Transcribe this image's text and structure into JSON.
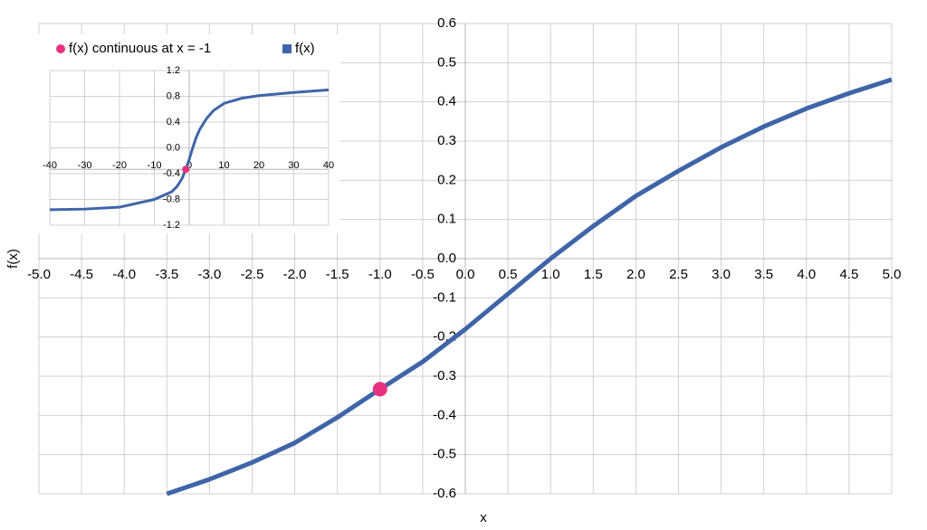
{
  "chart_data": [
    {
      "type": "line",
      "x_label": "x",
      "y_label": "f(x)",
      "legend": "top-left",
      "grid": true,
      "xlim": [
        -5,
        5
      ],
      "ylim": [
        -0.6,
        0.6
      ],
      "xticks": [
        {
          "value": -5,
          "label": "-5.0"
        },
        -4.5,
        {
          "value": -4,
          "label": "-4.0"
        },
        -3.5,
        {
          "value": -3,
          "label": "-3.0"
        },
        -2.5,
        {
          "value": -2,
          "label": "-2.0"
        },
        -1.5,
        {
          "value": -1,
          "label": "-1.0"
        },
        -0.5,
        {
          "value": 0,
          "label": "0.0"
        },
        0.5,
        {
          "value": 1,
          "label": "1.0"
        },
        1.5,
        {
          "value": 2,
          "label": "2.0"
        },
        2.5,
        {
          "value": 3,
          "label": "3.0"
        },
        3.5,
        {
          "value": 4,
          "label": "4.0"
        },
        4.5,
        {
          "value": 5,
          "label": "5.0"
        }
      ],
      "yticks": [
        0.6,
        0.5,
        0.4,
        0.3,
        0.2,
        0.1,
        {
          "value": 0,
          "label": "0.0"
        },
        -0.1,
        -0.2,
        -0.3,
        -0.4,
        -0.5,
        -0.6
      ],
      "series": [
        {
          "name": "f(x) continuous at x = -1",
          "color": "#e8327f",
          "marker": "circle",
          "x": [
            -1
          ],
          "values": [
            -0.333
          ]
        },
        {
          "name": "f(x)",
          "color": "#3f65a8",
          "marker": "line",
          "x": [
            -3.5,
            -3,
            -2.5,
            -2,
            -1.5,
            -1,
            -0.5,
            0,
            0.5,
            1,
            1.5,
            2,
            2.5,
            3,
            3.5,
            4,
            4.5,
            5
          ],
          "values": [
            -0.6,
            -0.563,
            -0.52,
            -0.47,
            -0.405,
            -0.333,
            -0.263,
            -0.18,
            -0.09,
            0,
            0.083,
            0.16,
            0.224,
            0.284,
            0.337,
            0.383,
            0.422,
            0.457
          ]
        }
      ]
    },
    {
      "type": "line",
      "grid": true,
      "x_axis_at": -0.333,
      "xlim": [
        -40,
        40
      ],
      "ylim": [
        -1.2,
        1.2
      ],
      "xticks": [
        -40,
        -30,
        -20,
        -10,
        0,
        10,
        20,
        30,
        40
      ],
      "yticks": [
        1.2,
        0.8,
        0.4,
        {
          "value": 0,
          "label": "0.0"
        },
        -0.4,
        -0.8,
        -1.2
      ],
      "series": [
        {
          "color": "#e8327f",
          "marker": "circle",
          "x": [
            -1
          ],
          "values": [
            -0.333
          ]
        },
        {
          "color": "#3f65a8",
          "marker": "line",
          "x": [
            -40,
            -30,
            -20,
            -10,
            -5,
            -3.5,
            -2,
            -1,
            0,
            1,
            2,
            3,
            5,
            7,
            10,
            15,
            20,
            30,
            40
          ],
          "values": [
            -0.96,
            -0.95,
            -0.92,
            -0.8,
            -0.68,
            -0.6,
            -0.47,
            -0.333,
            -0.18,
            0,
            0.16,
            0.284,
            0.457,
            0.58,
            0.69,
            0.77,
            0.81,
            0.86,
            0.9
          ]
        }
      ]
    }
  ]
}
